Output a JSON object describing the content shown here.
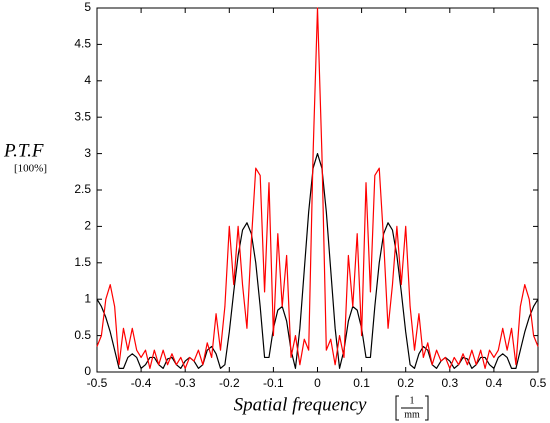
{
  "chart_data": {
    "type": "line",
    "y_label": "P.T.F",
    "y_unit": "[100%]",
    "x_label": "Spatial frequency",
    "x_unit_numerator": "1",
    "x_unit_denominator": "mm",
    "x": [
      -0.5,
      -0.49,
      -0.48,
      -0.47,
      -0.46,
      -0.45,
      -0.44,
      -0.43,
      -0.42,
      -0.41,
      -0.4,
      -0.39,
      -0.38,
      -0.37,
      -0.36,
      -0.35,
      -0.34,
      -0.33,
      -0.32,
      -0.31,
      -0.3,
      -0.29,
      -0.28,
      -0.27,
      -0.26,
      -0.25,
      -0.24,
      -0.23,
      -0.22,
      -0.21,
      -0.2,
      -0.19,
      -0.18,
      -0.17,
      -0.16,
      -0.15,
      -0.14,
      -0.13,
      -0.12,
      -0.11,
      -0.1,
      -0.09,
      -0.08,
      -0.07,
      -0.06,
      -0.05,
      -0.04,
      -0.03,
      -0.02,
      -0.01,
      0,
      0.01,
      0.02,
      0.03,
      0.04,
      0.05,
      0.06,
      0.07,
      0.08,
      0.09,
      0.1,
      0.11,
      0.12,
      0.13,
      0.14,
      0.15,
      0.16,
      0.17,
      0.18,
      0.19,
      0.2,
      0.21,
      0.22,
      0.23,
      0.24,
      0.25,
      0.26,
      0.27,
      0.28,
      0.29,
      0.3,
      0.31,
      0.32,
      0.33,
      0.34,
      0.35,
      0.36,
      0.37,
      0.38,
      0.39,
      0.4,
      0.41,
      0.42,
      0.43,
      0.44,
      0.45,
      0.46,
      0.47,
      0.48,
      0.49,
      0.5
    ],
    "series": [
      {
        "color": "#000000",
        "values": [
          1.0,
          0.9,
          0.75,
          0.55,
          0.3,
          0.05,
          0.05,
          0.2,
          0.25,
          0.2,
          0.05,
          0.1,
          0.2,
          0.2,
          0.1,
          0.05,
          0.18,
          0.2,
          0.1,
          0.05,
          0.15,
          0.2,
          0.15,
          0.05,
          0.1,
          0.3,
          0.35,
          0.25,
          0.05,
          0.1,
          0.55,
          1.1,
          1.6,
          1.95,
          2.05,
          1.9,
          1.5,
          0.9,
          0.2,
          0.2,
          0.6,
          0.85,
          0.9,
          0.7,
          0.3,
          0.05,
          0.6,
          1.4,
          2.2,
          2.8,
          3.0,
          2.8,
          2.2,
          1.4,
          0.6,
          0.05,
          0.3,
          0.7,
          0.9,
          0.85,
          0.6,
          0.2,
          0.2,
          0.9,
          1.5,
          1.9,
          2.05,
          1.95,
          1.6,
          1.1,
          0.55,
          0.1,
          0.05,
          0.25,
          0.35,
          0.3,
          0.1,
          0.05,
          0.15,
          0.2,
          0.15,
          0.05,
          0.1,
          0.2,
          0.18,
          0.05,
          0.1,
          0.2,
          0.2,
          0.1,
          0.05,
          0.2,
          0.25,
          0.2,
          0.05,
          0.05,
          0.3,
          0.55,
          0.75,
          0.9,
          1.0
        ]
      },
      {
        "color": "#ff0000",
        "values": [
          0.35,
          0.5,
          1.0,
          1.2,
          0.9,
          0.1,
          0.6,
          0.3,
          0.6,
          0.3,
          0.2,
          0.3,
          0.05,
          0.3,
          0.1,
          0.3,
          0.1,
          0.25,
          0.1,
          0.2,
          0.05,
          0.2,
          0.15,
          0.3,
          0.1,
          0.4,
          0.2,
          0.8,
          0.3,
          0.9,
          2.0,
          1.2,
          2.0,
          1.2,
          0.6,
          1.8,
          2.8,
          2.7,
          1.1,
          2.6,
          0.5,
          1.9,
          0.9,
          1.6,
          0.2,
          0.5,
          0.1,
          0.45,
          0.3,
          3.0,
          5.0,
          3.0,
          0.3,
          0.45,
          0.1,
          0.5,
          0.2,
          1.6,
          0.9,
          1.9,
          0.5,
          2.6,
          1.1,
          2.7,
          2.8,
          1.8,
          0.6,
          1.2,
          2.0,
          1.2,
          2.0,
          0.9,
          0.3,
          0.8,
          0.2,
          0.4,
          0.1,
          0.3,
          0.15,
          0.2,
          0.05,
          0.2,
          0.1,
          0.25,
          0.1,
          0.3,
          0.1,
          0.3,
          0.05,
          0.3,
          0.2,
          0.3,
          0.6,
          0.3,
          0.6,
          0.1,
          0.9,
          1.2,
          1.0,
          0.5,
          0.35
        ]
      }
    ],
    "xlim": [
      -0.5,
      0.5
    ],
    "xticks": [
      -0.5,
      -0.4,
      -0.3,
      -0.2,
      -0.1,
      0,
      0.1,
      0.2,
      0.3,
      0.4,
      0.5
    ],
    "ylim": [
      0,
      5
    ],
    "yticks": [
      0,
      0.5,
      1,
      1.5,
      2,
      2.5,
      3,
      3.5,
      4,
      4.5,
      5
    ]
  }
}
